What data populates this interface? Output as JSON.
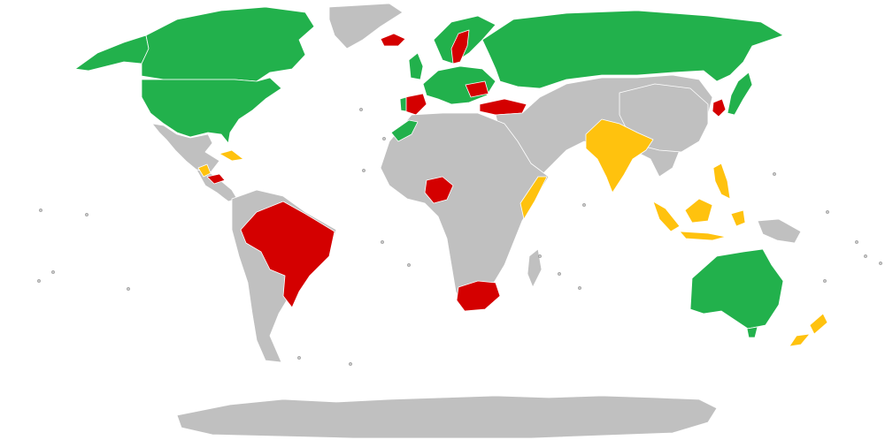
{
  "colors": {
    "background": "#ffffff",
    "none": "#c0c0c0",
    "green": "#22b14c",
    "red": "#d40000",
    "yellow": "#ffc20e"
  },
  "regions": [
    {
      "id": "canada",
      "category": "green"
    },
    {
      "id": "usa",
      "category": "green"
    },
    {
      "id": "alaska",
      "category": "green"
    },
    {
      "id": "greenland",
      "category": "none"
    },
    {
      "id": "mexico",
      "category": "none"
    },
    {
      "id": "central-america",
      "category": "none"
    },
    {
      "id": "honduras",
      "category": "red"
    },
    {
      "id": "guatemala",
      "category": "yellow"
    },
    {
      "id": "cuba",
      "category": "yellow"
    },
    {
      "id": "south-america",
      "category": "none"
    },
    {
      "id": "brazil",
      "category": "red"
    },
    {
      "id": "iceland",
      "category": "red"
    },
    {
      "id": "uk-ireland",
      "category": "green"
    },
    {
      "id": "scandinavia",
      "category": "green"
    },
    {
      "id": "sweden",
      "category": "red"
    },
    {
      "id": "western-europe",
      "category": "green"
    },
    {
      "id": "spain",
      "category": "red"
    },
    {
      "id": "portugal",
      "category": "green"
    },
    {
      "id": "balkans",
      "category": "red"
    },
    {
      "id": "turkey",
      "category": "red"
    },
    {
      "id": "russia",
      "category": "green"
    },
    {
      "id": "middle-east-asia",
      "category": "none"
    },
    {
      "id": "india",
      "category": "yellow"
    },
    {
      "id": "china",
      "category": "none"
    },
    {
      "id": "korea",
      "category": "red"
    },
    {
      "id": "japan",
      "category": "green"
    },
    {
      "id": "philippines",
      "category": "yellow"
    },
    {
      "id": "indonesia",
      "category": "yellow"
    },
    {
      "id": "borneo",
      "category": "yellow"
    },
    {
      "id": "new-guinea",
      "category": "none"
    },
    {
      "id": "africa",
      "category": "none"
    },
    {
      "id": "morocco",
      "category": "green"
    },
    {
      "id": "nigeria",
      "category": "red"
    },
    {
      "id": "somalia",
      "category": "yellow"
    },
    {
      "id": "south-africa",
      "category": "red"
    },
    {
      "id": "madagascar",
      "category": "none"
    },
    {
      "id": "australia",
      "category": "green"
    },
    {
      "id": "tasmania",
      "category": "green"
    },
    {
      "id": "new-zealand",
      "category": "yellow"
    },
    {
      "id": "antarctica",
      "category": "none"
    }
  ]
}
